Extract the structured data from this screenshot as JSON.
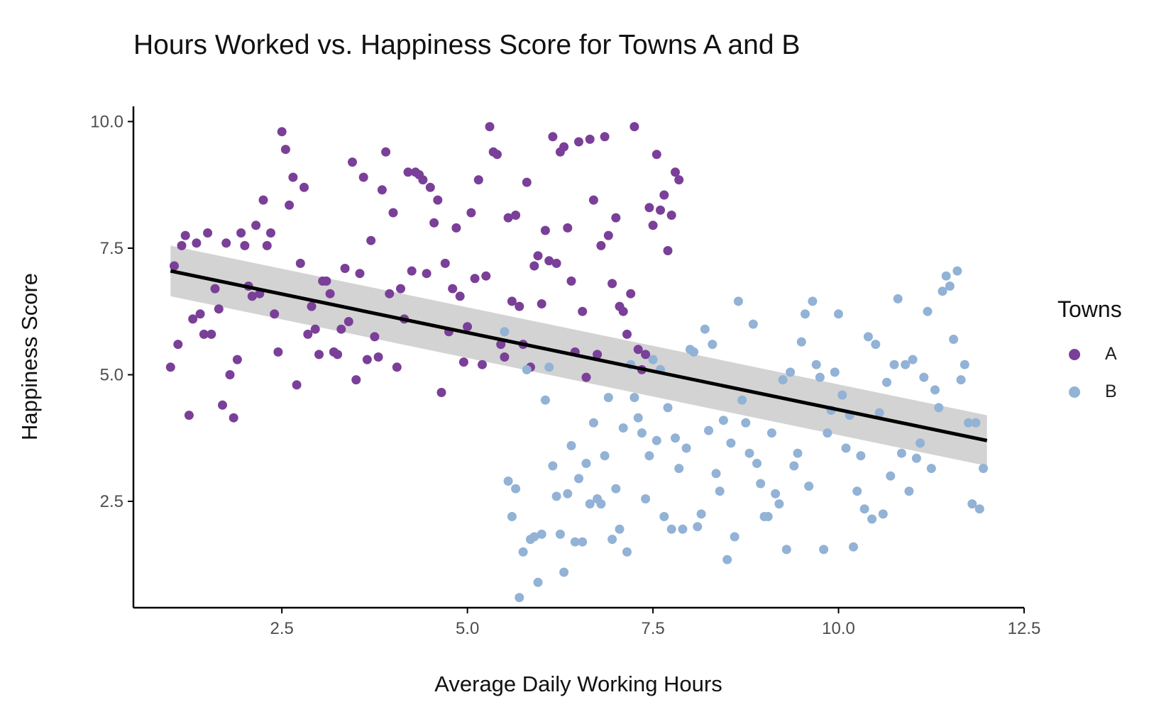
{
  "chart_data": {
    "type": "scatter",
    "title": "Hours Worked vs. Happiness Score for Towns A and B",
    "xlabel": "Average Daily Working Hours",
    "ylabel": "Happiness Score",
    "xlim": [
      0.5,
      12.5
    ],
    "ylim": [
      0.4,
      10.3
    ],
    "xticks": [
      "2.5",
      "5.0",
      "7.5",
      "10.0",
      "12.5"
    ],
    "yticks": [
      "2.5",
      "5.0",
      "7.5",
      "10.0"
    ],
    "grid": false,
    "legend": {
      "title": "Towns",
      "placement": "right"
    },
    "series": [
      {
        "name": "A",
        "color": "#7a3f98",
        "points": [
          [
            1.0,
            5.15
          ],
          [
            1.05,
            7.15
          ],
          [
            1.1,
            5.6
          ],
          [
            1.15,
            7.55
          ],
          [
            1.2,
            7.75
          ],
          [
            1.25,
            4.2
          ],
          [
            1.3,
            6.1
          ],
          [
            1.35,
            7.6
          ],
          [
            1.4,
            6.2
          ],
          [
            1.45,
            5.8
          ],
          [
            1.5,
            7.8
          ],
          [
            1.55,
            5.8
          ],
          [
            1.6,
            6.7
          ],
          [
            1.65,
            6.3
          ],
          [
            1.7,
            4.4
          ],
          [
            1.75,
            7.6
          ],
          [
            1.8,
            5.0
          ],
          [
            1.85,
            4.15
          ],
          [
            1.9,
            5.3
          ],
          [
            1.95,
            7.8
          ],
          [
            2.0,
            7.55
          ],
          [
            2.05,
            6.75
          ],
          [
            2.1,
            6.55
          ],
          [
            2.15,
            7.95
          ],
          [
            2.2,
            6.6
          ],
          [
            2.25,
            8.45
          ],
          [
            2.3,
            7.55
          ],
          [
            2.35,
            7.8
          ],
          [
            2.4,
            6.2
          ],
          [
            2.45,
            5.45
          ],
          [
            2.5,
            9.8
          ],
          [
            2.55,
            9.45
          ],
          [
            2.6,
            8.35
          ],
          [
            2.65,
            8.9
          ],
          [
            2.7,
            4.8
          ],
          [
            2.75,
            7.2
          ],
          [
            2.8,
            8.7
          ],
          [
            2.85,
            5.8
          ],
          [
            2.9,
            6.35
          ],
          [
            2.95,
            5.9
          ],
          [
            3.0,
            5.4
          ],
          [
            3.05,
            6.85
          ],
          [
            3.1,
            6.85
          ],
          [
            3.15,
            6.6
          ],
          [
            3.2,
            5.45
          ],
          [
            3.25,
            5.4
          ],
          [
            3.3,
            5.9
          ],
          [
            3.35,
            7.1
          ],
          [
            3.4,
            6.05
          ],
          [
            3.45,
            9.2
          ],
          [
            3.5,
            4.9
          ],
          [
            3.55,
            7.0
          ],
          [
            3.6,
            8.9
          ],
          [
            3.65,
            5.3
          ],
          [
            3.7,
            7.65
          ],
          [
            3.75,
            5.75
          ],
          [
            3.8,
            5.35
          ],
          [
            3.85,
            8.65
          ],
          [
            3.9,
            9.4
          ],
          [
            3.95,
            6.6
          ],
          [
            4.0,
            8.2
          ],
          [
            4.05,
            5.15
          ],
          [
            4.1,
            6.7
          ],
          [
            4.15,
            6.1
          ],
          [
            4.2,
            9.0
          ],
          [
            4.25,
            7.05
          ],
          [
            4.3,
            9.0
          ],
          [
            4.35,
            8.95
          ],
          [
            4.4,
            8.85
          ],
          [
            4.45,
            7.0
          ],
          [
            4.5,
            8.7
          ],
          [
            4.55,
            8.0
          ],
          [
            4.6,
            8.45
          ],
          [
            4.65,
            4.65
          ],
          [
            4.7,
            7.2
          ],
          [
            4.75,
            5.85
          ],
          [
            4.8,
            6.7
          ],
          [
            4.85,
            7.9
          ],
          [
            4.9,
            6.55
          ],
          [
            4.95,
            5.25
          ],
          [
            5.0,
            5.95
          ],
          [
            5.05,
            8.2
          ],
          [
            5.1,
            6.9
          ],
          [
            5.15,
            8.85
          ],
          [
            5.2,
            5.2
          ],
          [
            5.25,
            6.95
          ],
          [
            5.3,
            9.9
          ],
          [
            5.35,
            9.4
          ],
          [
            5.4,
            9.35
          ],
          [
            5.45,
            5.6
          ],
          [
            5.5,
            5.35
          ],
          [
            5.55,
            8.1
          ],
          [
            5.6,
            6.45
          ],
          [
            5.65,
            8.15
          ],
          [
            5.7,
            6.35
          ],
          [
            5.75,
            5.6
          ],
          [
            5.8,
            8.8
          ],
          [
            5.85,
            5.15
          ],
          [
            5.9,
            7.15
          ],
          [
            5.95,
            7.35
          ],
          [
            6.0,
            6.4
          ],
          [
            6.05,
            7.85
          ],
          [
            6.1,
            7.25
          ],
          [
            6.15,
            9.7
          ],
          [
            6.2,
            7.2
          ],
          [
            6.25,
            9.4
          ],
          [
            6.3,
            9.5
          ],
          [
            6.35,
            7.9
          ],
          [
            6.4,
            6.85
          ],
          [
            6.45,
            5.45
          ],
          [
            6.5,
            9.6
          ],
          [
            6.55,
            6.25
          ],
          [
            6.6,
            4.95
          ],
          [
            6.65,
            9.65
          ],
          [
            6.7,
            8.45
          ],
          [
            6.75,
            5.4
          ],
          [
            6.8,
            7.55
          ],
          [
            6.85,
            9.7
          ],
          [
            6.9,
            7.75
          ],
          [
            6.95,
            6.8
          ],
          [
            7.0,
            8.1
          ],
          [
            7.05,
            6.35
          ],
          [
            7.1,
            6.25
          ],
          [
            7.15,
            5.8
          ],
          [
            7.2,
            6.6
          ],
          [
            7.25,
            9.9
          ],
          [
            7.3,
            5.5
          ],
          [
            7.35,
            5.1
          ],
          [
            7.4,
            5.4
          ],
          [
            7.45,
            8.3
          ],
          [
            7.5,
            7.95
          ],
          [
            7.55,
            9.35
          ],
          [
            7.6,
            8.25
          ],
          [
            7.65,
            8.55
          ],
          [
            7.7,
            7.45
          ],
          [
            7.75,
            8.15
          ],
          [
            7.8,
            9.0
          ],
          [
            7.85,
            8.85
          ]
        ]
      },
      {
        "name": "B",
        "color": "#92b2d6",
        "points": [
          [
            5.5,
            5.85
          ],
          [
            5.55,
            2.9
          ],
          [
            5.6,
            2.2
          ],
          [
            5.65,
            2.75
          ],
          [
            5.7,
            0.6
          ],
          [
            5.75,
            1.5
          ],
          [
            5.8,
            5.1
          ],
          [
            5.85,
            1.75
          ],
          [
            5.9,
            1.8
          ],
          [
            5.95,
            0.9
          ],
          [
            6.0,
            1.85
          ],
          [
            6.05,
            4.5
          ],
          [
            6.1,
            5.15
          ],
          [
            6.15,
            3.2
          ],
          [
            6.2,
            2.6
          ],
          [
            6.25,
            1.85
          ],
          [
            6.3,
            1.1
          ],
          [
            6.35,
            2.65
          ],
          [
            6.4,
            3.6
          ],
          [
            6.45,
            1.7
          ],
          [
            6.5,
            2.95
          ],
          [
            6.55,
            1.7
          ],
          [
            6.6,
            3.25
          ],
          [
            6.65,
            2.45
          ],
          [
            6.7,
            4.05
          ],
          [
            6.75,
            2.55
          ],
          [
            6.8,
            2.45
          ],
          [
            6.85,
            3.4
          ],
          [
            6.9,
            4.55
          ],
          [
            6.95,
            1.75
          ],
          [
            7.0,
            2.75
          ],
          [
            7.05,
            1.95
          ],
          [
            7.1,
            3.95
          ],
          [
            7.15,
            1.5
          ],
          [
            7.2,
            5.2
          ],
          [
            7.25,
            4.55
          ],
          [
            7.3,
            4.15
          ],
          [
            7.35,
            3.85
          ],
          [
            7.4,
            2.55
          ],
          [
            7.45,
            3.4
          ],
          [
            7.5,
            5.3
          ],
          [
            7.55,
            3.7
          ],
          [
            7.6,
            5.1
          ],
          [
            7.65,
            2.2
          ],
          [
            7.7,
            4.35
          ],
          [
            7.75,
            1.95
          ],
          [
            7.8,
            3.75
          ],
          [
            7.85,
            3.15
          ],
          [
            7.9,
            1.95
          ],
          [
            7.95,
            3.55
          ],
          [
            8.0,
            5.5
          ],
          [
            8.05,
            5.45
          ],
          [
            8.1,
            2.0
          ],
          [
            8.15,
            2.25
          ],
          [
            8.2,
            5.9
          ],
          [
            8.25,
            3.9
          ],
          [
            8.3,
            5.6
          ],
          [
            8.35,
            3.05
          ],
          [
            8.4,
            2.7
          ],
          [
            8.45,
            4.1
          ],
          [
            8.5,
            1.35
          ],
          [
            8.55,
            3.65
          ],
          [
            8.6,
            1.8
          ],
          [
            8.65,
            6.45
          ],
          [
            8.7,
            4.5
          ],
          [
            8.75,
            4.05
          ],
          [
            8.8,
            3.45
          ],
          [
            8.85,
            6.0
          ],
          [
            8.9,
            3.25
          ],
          [
            8.95,
            2.85
          ],
          [
            9.0,
            2.2
          ],
          [
            9.05,
            2.2
          ],
          [
            9.1,
            3.85
          ],
          [
            9.15,
            2.65
          ],
          [
            9.2,
            2.45
          ],
          [
            9.25,
            4.9
          ],
          [
            9.3,
            1.55
          ],
          [
            9.35,
            5.05
          ],
          [
            9.4,
            3.2
          ],
          [
            9.45,
            3.45
          ],
          [
            9.5,
            5.65
          ],
          [
            9.55,
            6.2
          ],
          [
            9.6,
            2.8
          ],
          [
            9.65,
            6.45
          ],
          [
            9.7,
            5.2
          ],
          [
            9.75,
            4.95
          ],
          [
            9.8,
            1.55
          ],
          [
            9.85,
            3.85
          ],
          [
            9.9,
            4.3
          ],
          [
            9.95,
            5.05
          ],
          [
            10.0,
            6.2
          ],
          [
            10.05,
            4.6
          ],
          [
            10.1,
            3.55
          ],
          [
            10.15,
            4.2
          ],
          [
            10.2,
            1.6
          ],
          [
            10.25,
            2.7
          ],
          [
            10.3,
            3.4
          ],
          [
            10.35,
            2.35
          ],
          [
            10.4,
            5.75
          ],
          [
            10.45,
            2.15
          ],
          [
            10.5,
            5.6
          ],
          [
            10.55,
            4.25
          ],
          [
            10.6,
            2.25
          ],
          [
            10.65,
            4.85
          ],
          [
            10.7,
            3.0
          ],
          [
            10.75,
            5.2
          ],
          [
            10.8,
            6.5
          ],
          [
            10.85,
            3.45
          ],
          [
            10.9,
            5.2
          ],
          [
            10.95,
            2.7
          ],
          [
            11.0,
            5.3
          ],
          [
            11.05,
            3.35
          ],
          [
            11.1,
            3.65
          ],
          [
            11.15,
            4.95
          ],
          [
            11.2,
            6.25
          ],
          [
            11.25,
            3.15
          ],
          [
            11.3,
            4.7
          ],
          [
            11.35,
            4.35
          ],
          [
            11.4,
            6.65
          ],
          [
            11.45,
            6.95
          ],
          [
            11.5,
            6.75
          ],
          [
            11.55,
            5.7
          ],
          [
            11.6,
            7.05
          ],
          [
            11.65,
            4.9
          ],
          [
            11.7,
            5.2
          ],
          [
            11.75,
            4.05
          ],
          [
            11.8,
            2.45
          ],
          [
            11.85,
            4.05
          ],
          [
            11.9,
            2.35
          ],
          [
            11.95,
            3.15
          ]
        ]
      }
    ],
    "trend_line": {
      "color": "#000000",
      "band_color": "#d3d3d3",
      "start": [
        1.0,
        7.05
      ],
      "end": [
        12.0,
        3.7
      ],
      "band_start": [
        6.55,
        7.55
      ],
      "band_end": [
        3.2,
        4.2
      ]
    }
  }
}
